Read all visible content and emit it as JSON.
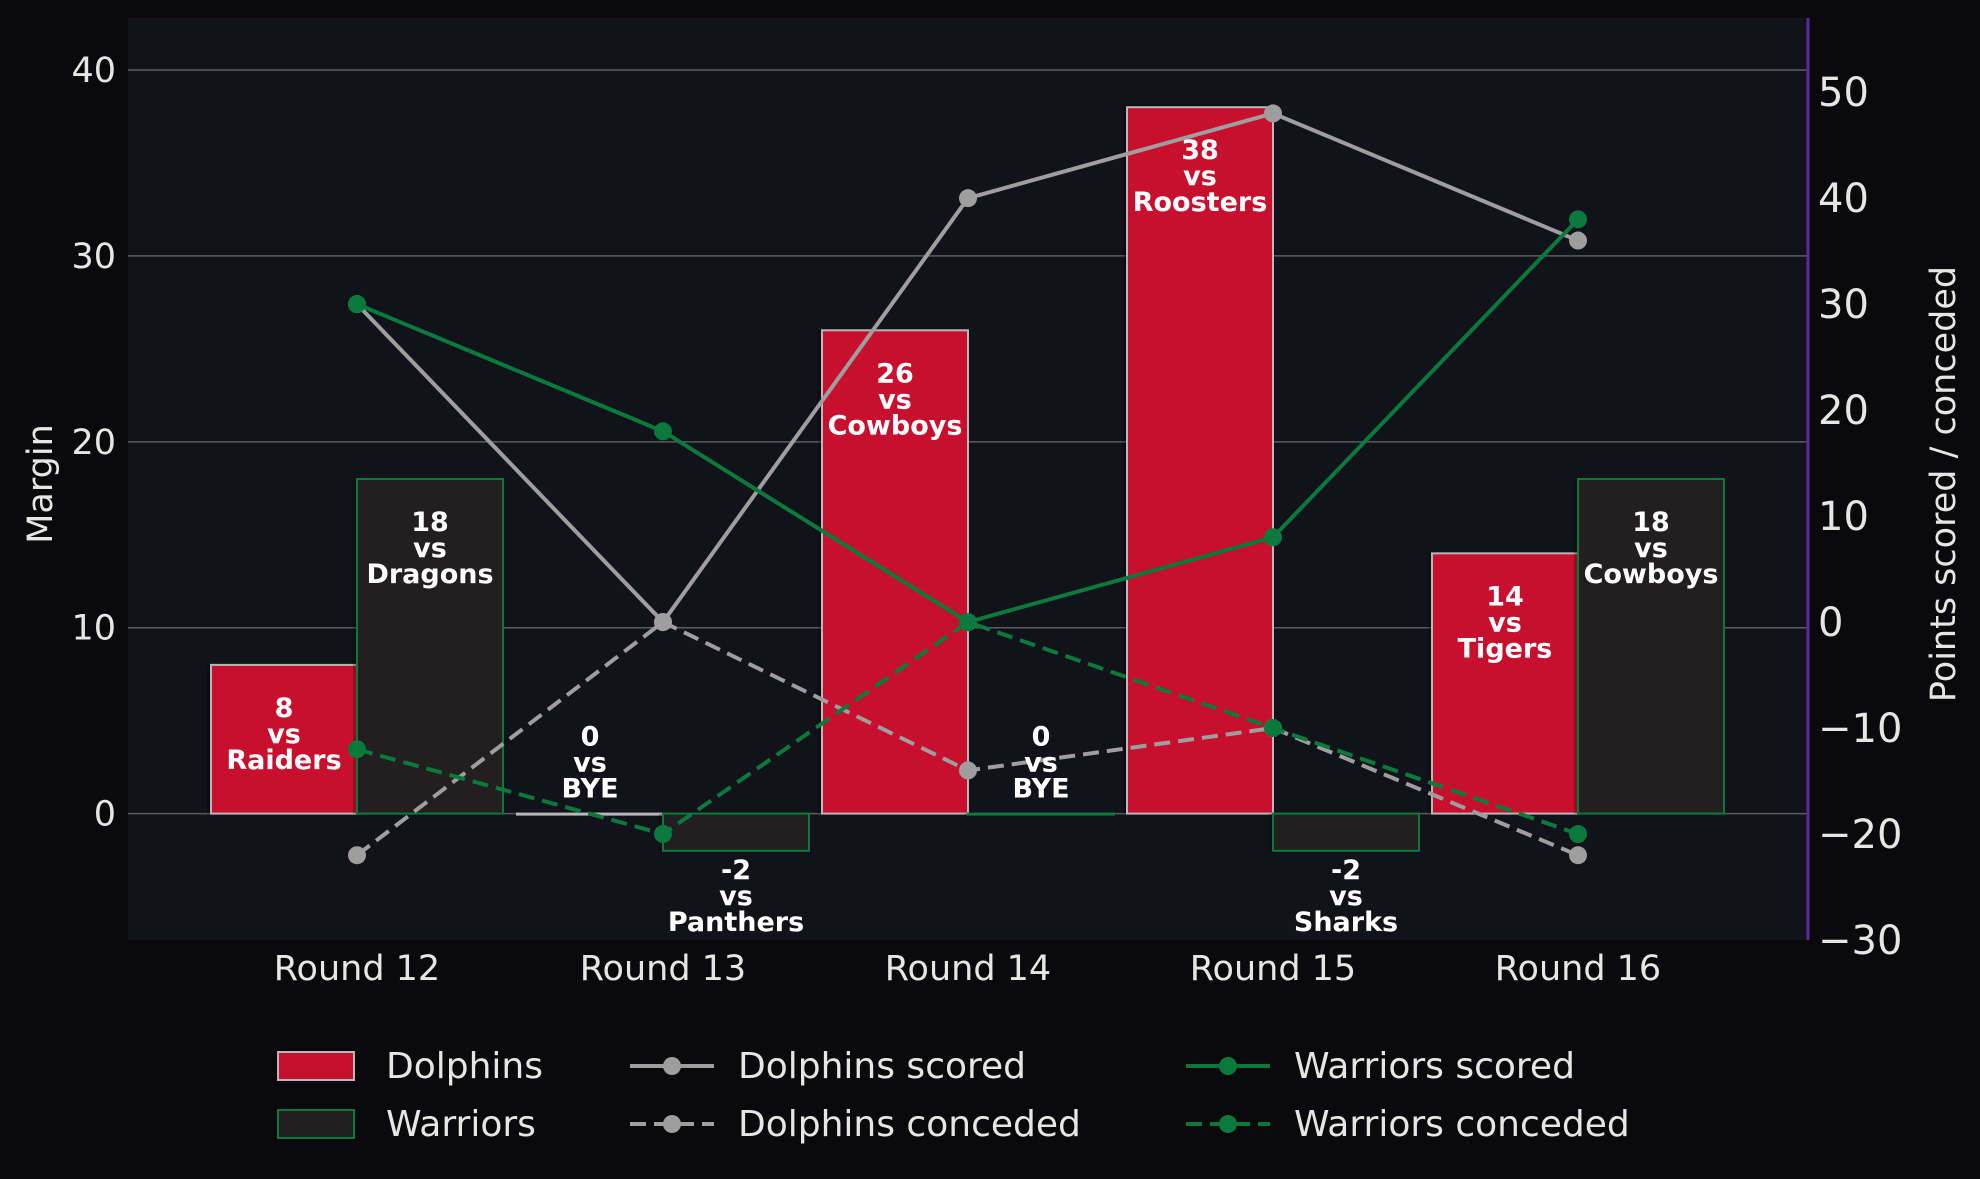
{
  "colors": {
    "page_bg": "#0a0a0d",
    "plot_bg": "#12131a",
    "grid": "#5a5c63",
    "text": "#e6e6e6",
    "dolphins_bar": "#c8102e",
    "dolphins_edge": "#b8b8b8",
    "warriors_bar": "#231f20",
    "warriors_edge": "#0a7a3c",
    "dolphins_line": "#9e9e9e",
    "warriors_line": "#0a7a3c",
    "right_spine": "#5b2b9e"
  },
  "chart_data": {
    "type": "bar",
    "categories": [
      "Round 12",
      "Round 13",
      "Round 14",
      "Round 15",
      "Round 16"
    ],
    "ylabel": "Margin",
    "ylabel_right": "Points scored / conceded",
    "ylim": [
      -6.8,
      42.8
    ],
    "ylim_right": [
      -30,
      57
    ],
    "yticks": [
      0,
      10,
      20,
      30,
      40
    ],
    "yticks_right": [
      -30,
      -20,
      -10,
      0,
      10,
      20,
      30,
      40,
      50
    ],
    "yticklabels_right": [
      "−30",
      "−20",
      "−10",
      "0",
      "10",
      "20",
      "30",
      "40",
      "50"
    ],
    "grid": true,
    "legend_position": "bottom-center",
    "bar_series": [
      {
        "name": "Dolphins",
        "values": [
          8,
          0,
          26,
          38,
          14
        ],
        "labels": [
          [
            "8",
            "vs",
            "Raiders"
          ],
          [
            "0",
            "vs",
            "BYE"
          ],
          [
            "26",
            "vs",
            "Cowboys"
          ],
          [
            "38",
            "vs",
            "Roosters"
          ],
          [
            "14",
            "vs",
            "Tigers"
          ]
        ]
      },
      {
        "name": "Warriors",
        "values": [
          18,
          -2,
          0,
          -2,
          18
        ],
        "labels": [
          [
            "18",
            "vs",
            "Dragons"
          ],
          [
            "-2",
            "vs",
            "Panthers"
          ],
          [
            "0",
            "vs",
            "BYE"
          ],
          [
            "-2",
            "vs",
            "Sharks"
          ],
          [
            "18",
            "vs",
            "Cowboys"
          ]
        ]
      }
    ],
    "line_series": [
      {
        "name": "Dolphins scored",
        "values": [
          30,
          0,
          40,
          48,
          36
        ],
        "style": "solid",
        "team": "dolphins"
      },
      {
        "name": "Dolphins conceded",
        "values": [
          -22,
          0,
          -14,
          -10,
          -22
        ],
        "style": "dashed",
        "team": "dolphins"
      },
      {
        "name": "Warriors scored",
        "values": [
          30,
          18,
          0,
          8,
          38
        ],
        "style": "solid",
        "team": "warriors"
      },
      {
        "name": "Warriors conceded",
        "values": [
          -12,
          -20,
          0,
          -10,
          -20
        ],
        "style": "dashed",
        "team": "warriors"
      }
    ]
  }
}
